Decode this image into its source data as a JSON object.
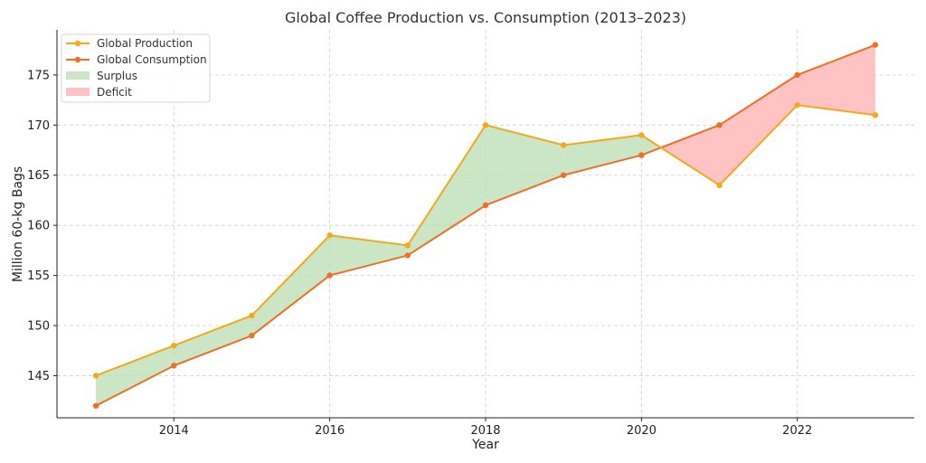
{
  "chart_data": {
    "type": "line",
    "title": "Global Coffee Production vs. Consumption (2013–2023)",
    "xlabel": "Year",
    "ylabel": "Million 60-kg Bags",
    "x": [
      2013,
      2014,
      2015,
      2016,
      2017,
      2018,
      2019,
      2020,
      2021,
      2022,
      2023
    ],
    "series": [
      {
        "name": "Global Production",
        "color": "#F5A81C",
        "values": [
          145,
          148,
          151,
          159,
          158,
          170,
          168,
          169,
          164,
          172,
          171
        ]
      },
      {
        "name": "Global Consumption",
        "color": "#EE7026",
        "values": [
          142,
          146,
          149,
          155,
          157,
          162,
          165,
          167,
          170,
          175,
          178
        ]
      }
    ],
    "fills": [
      {
        "name": "Surplus",
        "color": "#B9DDB2"
      },
      {
        "name": "Deficit",
        "color": "#FFBDBD"
      }
    ],
    "xlim": [
      2012.5,
      2023.5
    ],
    "ylim": [
      140.8,
      179.5
    ],
    "xticks": [
      "2014",
      "2016",
      "2018",
      "2020",
      "2022"
    ],
    "yticks": [
      "145",
      "150",
      "155",
      "160",
      "165",
      "170",
      "175"
    ],
    "grid": true,
    "legend_position": "top-left"
  }
}
